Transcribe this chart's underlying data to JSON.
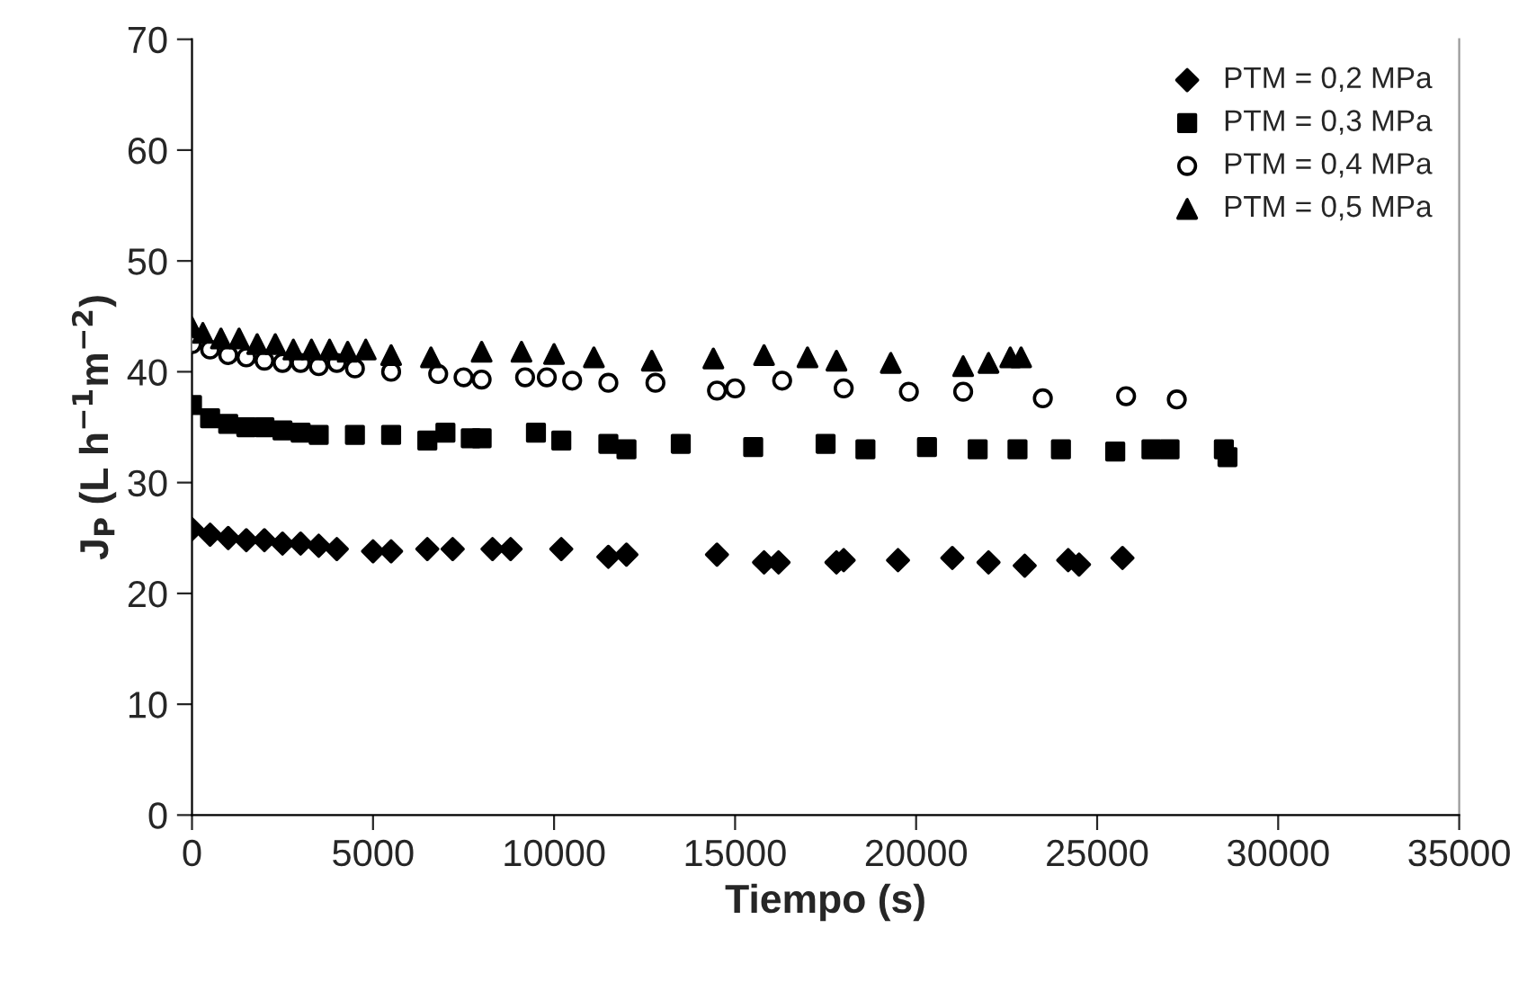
{
  "chart_data": {
    "type": "scatter",
    "xlabel": "Tiempo (s)",
    "ylabel": "J$_{P}$ (L h$^{−1}$m$^{−2}$)",
    "xlim": [
      0,
      35000
    ],
    "xticks": [
      0,
      5000,
      10000,
      15000,
      20000,
      25000,
      30000,
      35000
    ],
    "ylim": [
      0,
      70
    ],
    "yticks": [
      0,
      10,
      20,
      30,
      40,
      50,
      60,
      70
    ],
    "grid": false,
    "legend": "top right",
    "series": [
      {
        "name": "PTM = 0,2 MPa",
        "color": "#000000",
        "marker": "diamond",
        "x": [
          0,
          500,
          1000,
          1500,
          2000,
          2500,
          3000,
          3500,
          4000,
          5000,
          5500,
          6500,
          7200,
          8300,
          8800,
          10200,
          11500,
          12000,
          14500,
          15800,
          16200,
          17800,
          18000,
          19500,
          21000,
          22000,
          23000,
          24200,
          24500,
          25700
        ],
        "values": [
          25.8,
          25.3,
          25,
          24.8,
          24.8,
          24.5,
          24.5,
          24.3,
          24,
          23.8,
          23.8,
          24,
          24,
          24,
          24,
          24,
          23.3,
          23.5,
          23.5,
          22.8,
          22.8,
          22.8,
          23,
          23,
          23.2,
          22.8,
          22.5,
          23,
          22.6,
          23.2
        ]
      },
      {
        "name": "PTM = 0,3 MPa",
        "color": "#000000",
        "marker": "square",
        "x": [
          0,
          500,
          1000,
          1500,
          2000,
          2500,
          3000,
          3500,
          4500,
          5500,
          6500,
          7000,
          7700,
          8000,
          9500,
          10200,
          11500,
          12000,
          13500,
          15500,
          17500,
          18600,
          20300,
          21700,
          22800,
          24000,
          25500,
          26500,
          27000,
          28500,
          28600
        ],
        "values": [
          37,
          35.8,
          35.3,
          35,
          35,
          34.7,
          34.5,
          34.3,
          34.3,
          34.3,
          33.8,
          34.5,
          34,
          34,
          34.5,
          33.8,
          33.5,
          33,
          33.5,
          33.2,
          33.5,
          33,
          33.2,
          33,
          33,
          33,
          32.8,
          33,
          33,
          33,
          32.3
        ]
      },
      {
        "name": "PTM = 0,4 MPa",
        "color": "#000000",
        "marker": "circle",
        "x": [
          0,
          500,
          1000,
          1500,
          2000,
          2500,
          3000,
          3500,
          4000,
          4500,
          5500,
          6800,
          7500,
          8000,
          9200,
          9800,
          10500,
          11500,
          12800,
          14500,
          15000,
          16300,
          18000,
          19800,
          21300,
          23500,
          25800,
          27200
        ],
        "values": [
          42.5,
          42,
          41.5,
          41.3,
          41,
          40.8,
          40.8,
          40.5,
          40.8,
          40.3,
          40,
          39.8,
          39.5,
          39.3,
          39.5,
          39.5,
          39.2,
          39,
          39,
          38.3,
          38.5,
          39.2,
          38.5,
          38.2,
          38.2,
          37.6,
          37.8,
          37.5
        ]
      },
      {
        "name": "PTM = 0,5 MPa",
        "color": "#000000",
        "marker": "triangle",
        "x": [
          0,
          300,
          800,
          1300,
          1800,
          2300,
          2800,
          3300,
          3800,
          4300,
          4800,
          5500,
          6600,
          8000,
          9100,
          10000,
          11100,
          12700,
          14400,
          15800,
          17000,
          17800,
          19300,
          21300,
          22000,
          22600,
          22900
        ],
        "values": [
          44,
          43.5,
          43,
          43,
          42.5,
          42.5,
          42,
          42,
          42,
          41.8,
          42,
          41.5,
          41.3,
          41.8,
          41.8,
          41.6,
          41.3,
          41,
          41.2,
          41.5,
          41.3,
          41,
          40.8,
          40.5,
          40.8,
          41.3,
          41.3
        ]
      }
    ]
  }
}
